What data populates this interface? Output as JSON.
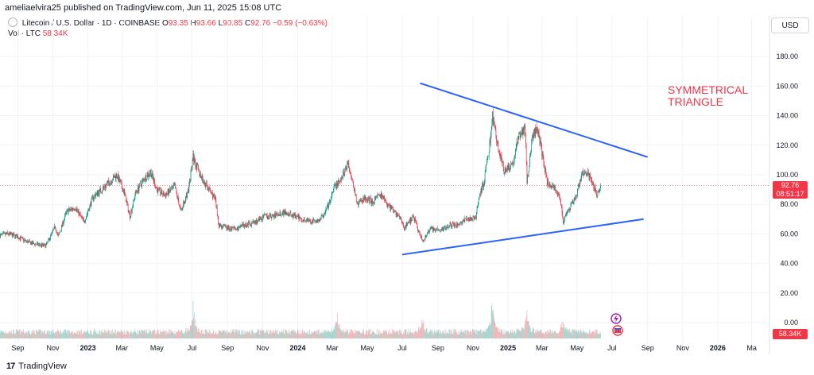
{
  "header": {
    "published_line": "ameliaelvira25 published on TradingView.com, Jun 11, 2025 15:08 UTC"
  },
  "legend": {
    "symbol_line": "Litecoin / U.S. Dollar · 1D · COINBASE",
    "o_label": "O",
    "o_value": "93.35",
    "h_label": "H",
    "h_value": "93.66",
    "l_label": "L",
    "l_value": "90.85",
    "c_label": "C",
    "c_value": "92.76",
    "change": "−0.59 (−0.63%)",
    "vol_label": "Vol · LTC",
    "vol_value": "58.34K"
  },
  "axis": {
    "currency": "USD",
    "last_price": "92.76",
    "countdown": "08:51:17",
    "last_volume": "58.34K"
  },
  "annotation": {
    "line1": "SYMMETRICAL",
    "line2": "TRIANGLE"
  },
  "footer": {
    "brand": "TradingView",
    "logo_text": "17"
  },
  "colors": {
    "up": "#089981",
    "down": "#f23645",
    "trendline": "#2962ff",
    "annotation": "#f23645"
  },
  "chart_data": {
    "type": "candlestick",
    "symbol": "Litecoin / U.S. Dollar",
    "interval": "1D",
    "exchange": "COINBASE",
    "ylim": [
      0,
      190
    ],
    "y_ticks": [
      0,
      20,
      40,
      60,
      80,
      100,
      120,
      140,
      160,
      180
    ],
    "y_tick_labels": [
      "0.00",
      "20.00",
      "40.00",
      "60.00",
      "80.00",
      "100.00",
      "120.00",
      "140.00",
      "160.00",
      "180.00"
    ],
    "x_tick_labels": [
      {
        "label": "Sep",
        "date": "2022-09-01",
        "bold": false
      },
      {
        "label": "Nov",
        "date": "2022-11-01",
        "bold": false
      },
      {
        "label": "2023",
        "date": "2023-01-01",
        "bold": true
      },
      {
        "label": "Mar",
        "date": "2023-03-01",
        "bold": false
      },
      {
        "label": "May",
        "date": "2023-05-01",
        "bold": false
      },
      {
        "label": "Jul",
        "date": "2023-07-01",
        "bold": false
      },
      {
        "label": "Sep",
        "date": "2023-09-01",
        "bold": false
      },
      {
        "label": "Nov",
        "date": "2023-11-01",
        "bold": false
      },
      {
        "label": "2024",
        "date": "2024-01-01",
        "bold": true
      },
      {
        "label": "Mar",
        "date": "2024-03-01",
        "bold": false
      },
      {
        "label": "May",
        "date": "2024-05-01",
        "bold": false
      },
      {
        "label": "Jul",
        "date": "2024-07-01",
        "bold": false
      },
      {
        "label": "Sep",
        "date": "2024-09-01",
        "bold": false
      },
      {
        "label": "Nov",
        "date": "2024-11-01",
        "bold": false
      },
      {
        "label": "2025",
        "date": "2025-01-01",
        "bold": true
      },
      {
        "label": "Mar",
        "date": "2025-03-01",
        "bold": false
      },
      {
        "label": "May",
        "date": "2025-05-01",
        "bold": false
      },
      {
        "label": "Jul",
        "date": "2025-07-01",
        "bold": false
      },
      {
        "label": "Sep",
        "date": "2025-09-01",
        "bold": false
      },
      {
        "label": "Nov",
        "date": "2025-11-01",
        "bold": false
      },
      {
        "label": "2026",
        "date": "2026-01-01",
        "bold": true
      },
      {
        "label": "Ma",
        "date": "2026-03-01",
        "bold": false
      }
    ],
    "price_path": [
      [
        "2022-08-01",
        59
      ],
      [
        "2022-08-15",
        60
      ],
      [
        "2022-09-01",
        58
      ],
      [
        "2022-09-15",
        55
      ],
      [
        "2022-10-01",
        53
      ],
      [
        "2022-10-20",
        52
      ],
      [
        "2022-11-05",
        65
      ],
      [
        "2022-11-10",
        58
      ],
      [
        "2022-11-25",
        75
      ],
      [
        "2022-12-10",
        78
      ],
      [
        "2022-12-25",
        68
      ],
      [
        "2023-01-10",
        85
      ],
      [
        "2023-01-25",
        90
      ],
      [
        "2023-02-10",
        96
      ],
      [
        "2023-02-20",
        100
      ],
      [
        "2023-03-05",
        88
      ],
      [
        "2023-03-15",
        72
      ],
      [
        "2023-03-25",
        88
      ],
      [
        "2023-04-10",
        98
      ],
      [
        "2023-04-20",
        102
      ],
      [
        "2023-05-01",
        90
      ],
      [
        "2023-05-15",
        86
      ],
      [
        "2023-06-01",
        92
      ],
      [
        "2023-06-12",
        75
      ],
      [
        "2023-06-25",
        90
      ],
      [
        "2023-07-03",
        112
      ],
      [
        "2023-07-15",
        100
      ],
      [
        "2023-07-25",
        93
      ],
      [
        "2023-08-10",
        84
      ],
      [
        "2023-08-17",
        66
      ],
      [
        "2023-09-01",
        64
      ],
      [
        "2023-09-15",
        63
      ],
      [
        "2023-10-01",
        66
      ],
      [
        "2023-10-20",
        68
      ],
      [
        "2023-11-05",
        72
      ],
      [
        "2023-11-20",
        72
      ],
      [
        "2023-12-10",
        75
      ],
      [
        "2023-12-25",
        72
      ],
      [
        "2024-01-10",
        70
      ],
      [
        "2024-01-25",
        68
      ],
      [
        "2024-02-10",
        70
      ],
      [
        "2024-02-25",
        80
      ],
      [
        "2024-03-05",
        92
      ],
      [
        "2024-03-15",
        95
      ],
      [
        "2024-03-28",
        108
      ],
      [
        "2024-04-05",
        98
      ],
      [
        "2024-04-13",
        80
      ],
      [
        "2024-04-25",
        84
      ],
      [
        "2024-05-10",
        82
      ],
      [
        "2024-05-25",
        86
      ],
      [
        "2024-06-10",
        78
      ],
      [
        "2024-06-25",
        72
      ],
      [
        "2024-07-05",
        64
      ],
      [
        "2024-07-20",
        72
      ],
      [
        "2024-08-05",
        55
      ],
      [
        "2024-08-20",
        64
      ],
      [
        "2024-09-05",
        62
      ],
      [
        "2024-09-20",
        66
      ],
      [
        "2024-10-05",
        66
      ],
      [
        "2024-10-20",
        70
      ],
      [
        "2024-11-05",
        70
      ],
      [
        "2024-11-12",
        85
      ],
      [
        "2024-11-20",
        95
      ],
      [
        "2024-11-30",
        120
      ],
      [
        "2024-12-05",
        140
      ],
      [
        "2024-12-15",
        118
      ],
      [
        "2024-12-25",
        103
      ],
      [
        "2025-01-10",
        108
      ],
      [
        "2025-01-20",
        128
      ],
      [
        "2025-01-31",
        130
      ],
      [
        "2025-02-03",
        95
      ],
      [
        "2025-02-12",
        125
      ],
      [
        "2025-02-20",
        132
      ],
      [
        "2025-03-01",
        115
      ],
      [
        "2025-03-10",
        95
      ],
      [
        "2025-03-20",
        92
      ],
      [
        "2025-04-01",
        86
      ],
      [
        "2025-04-07",
        68
      ],
      [
        "2025-04-20",
        78
      ],
      [
        "2025-05-01",
        88
      ],
      [
        "2025-05-12",
        102
      ],
      [
        "2025-05-20",
        100
      ],
      [
        "2025-05-28",
        95
      ],
      [
        "2025-06-05",
        86
      ],
      [
        "2025-06-11",
        92.76
      ]
    ],
    "volume_peaks_k": [
      [
        "2023-07-03",
        32
      ],
      [
        "2024-03-10",
        18
      ],
      [
        "2024-08-05",
        16
      ],
      [
        "2024-12-05",
        44
      ],
      [
        "2025-02-03",
        28
      ],
      [
        "2025-04-07",
        18
      ]
    ],
    "trendlines": [
      {
        "name": "upper",
        "from": [
          "2024-08-01",
          162
        ],
        "to": [
          "2025-09-01",
          112
        ]
      },
      {
        "name": "lower",
        "from": [
          "2024-07-01",
          46
        ],
        "to": [
          "2025-08-25",
          70
        ]
      }
    ],
    "last_price": 92.76,
    "grid": true,
    "legend_position": "top-left"
  }
}
